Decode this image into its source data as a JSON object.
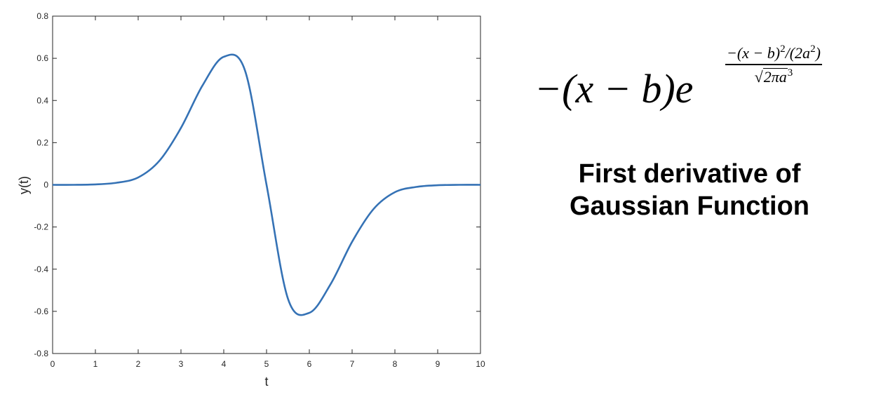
{
  "chart_data": {
    "type": "line",
    "title": "",
    "xlabel": "t",
    "ylabel": "y(t)",
    "xlim": [
      0,
      10
    ],
    "ylim": [
      -0.8,
      0.8
    ],
    "xticks": [
      0,
      1,
      2,
      3,
      4,
      5,
      6,
      7,
      8,
      9,
      10
    ],
    "yticks": [
      -0.8,
      -0.6,
      -0.4,
      -0.2,
      0,
      0.2,
      0.4,
      0.6,
      0.8
    ],
    "xtick_labels": [
      "0",
      "1",
      "2",
      "3",
      "4",
      "5",
      "6",
      "7",
      "8",
      "9",
      "10"
    ],
    "ytick_labels": [
      "-0.8",
      "-0.6",
      "-0.4",
      "-0.2",
      "0",
      "0.2",
      "0.4",
      "0.6",
      "0.8"
    ],
    "grid": false,
    "color": "#3572b5",
    "series": [
      {
        "x": [
          0,
          0.5,
          1,
          1.5,
          2,
          2.5,
          3,
          3.5,
          4,
          4.5,
          5,
          5.5,
          6,
          6.5,
          7,
          7.5,
          8,
          8.5,
          9,
          9.5,
          10
        ],
        "values": [
          0.0,
          0.0,
          0.002,
          0.01,
          0.035,
          0.115,
          0.27,
          0.47,
          0.607,
          0.54,
          0.0,
          -0.54,
          -0.607,
          -0.47,
          -0.27,
          -0.115,
          -0.035,
          -0.01,
          -0.002,
          0.0,
          0.0
        ]
      }
    ]
  },
  "formula": {
    "main": "−(x − b)e",
    "num_a": "−(x − b)",
    "num_sup": "2",
    "num_b": "/(2a",
    "num_sup2": "2",
    "num_c": ")",
    "den_root": "√",
    "den_inner": "2πa",
    "den_sup": "3"
  },
  "caption": {
    "line1": "First derivative of",
    "line2": "Gaussian Function"
  }
}
